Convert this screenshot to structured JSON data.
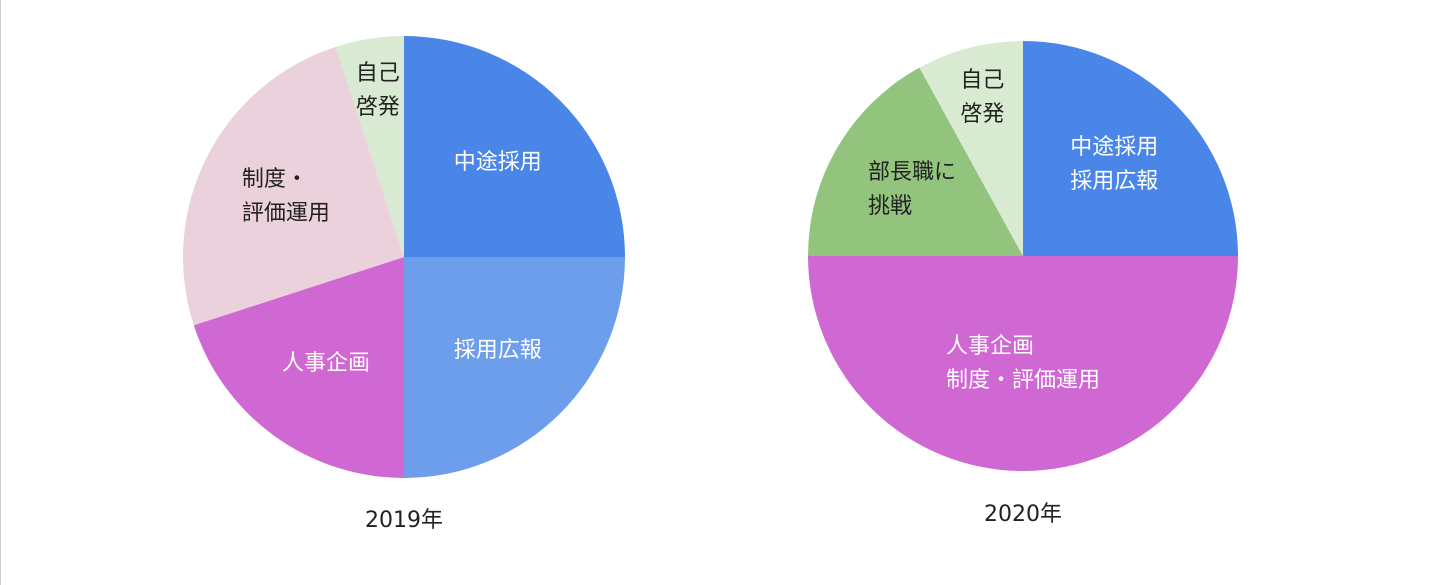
{
  "chart_data": [
    {
      "type": "pie",
      "title": "2019年",
      "categories": [
        "中途採用",
        "採用広報",
        "人事企画",
        "制度・\n評価運用",
        "自己\n啓発"
      ],
      "values": [
        25,
        25,
        20,
        25,
        5
      ],
      "colors": [
        "#4a86e8",
        "#6d9eeb",
        "#cf68d2",
        "#ead1dc",
        "#d9ead3"
      ]
    },
    {
      "type": "pie",
      "title": "2020年",
      "categories": [
        "中途採用\n採用広報",
        "人事企画\n制度・評価運用",
        "部長職に\n挑戦",
        "自己\n啓発"
      ],
      "values": [
        25,
        50,
        17,
        8
      ],
      "colors": [
        "#4a86e8",
        "#cf68d2",
        "#93c47d",
        "#d9ead3"
      ]
    }
  ]
}
